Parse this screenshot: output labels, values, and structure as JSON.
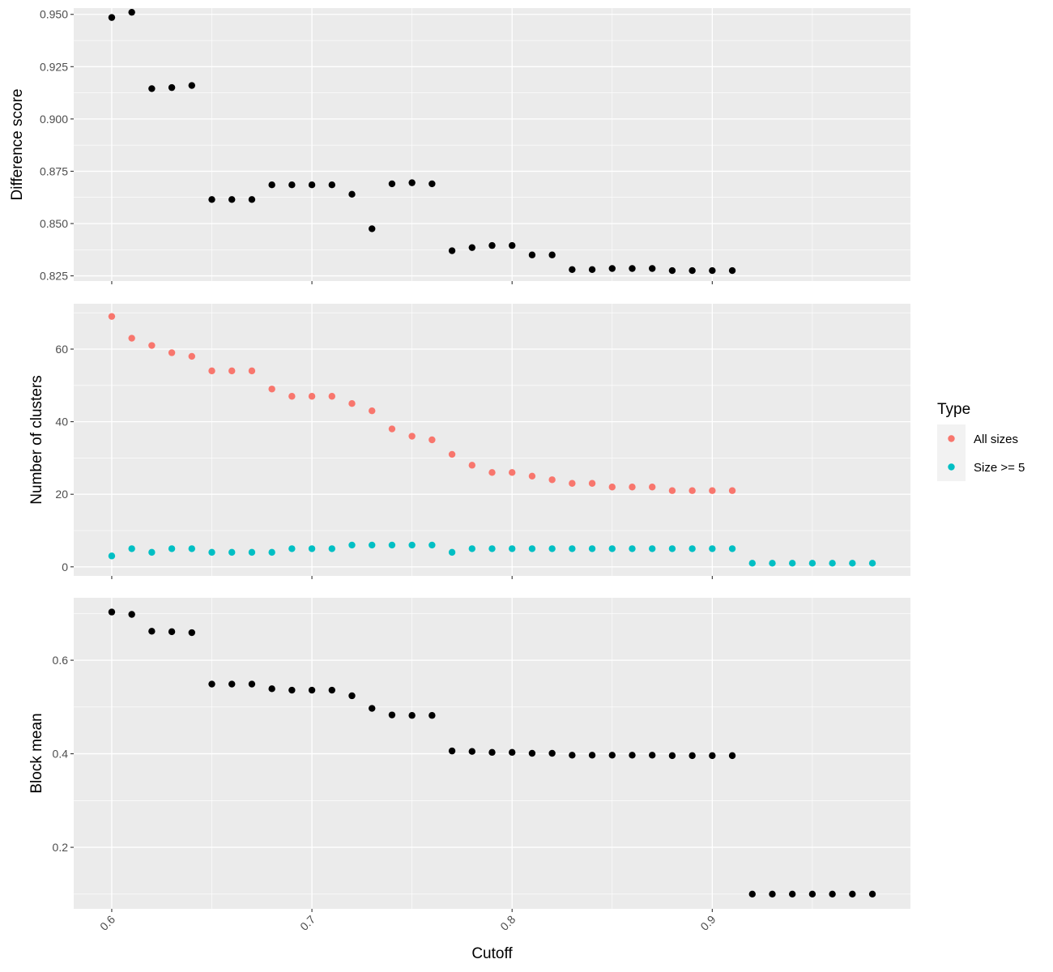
{
  "chart_data": [
    {
      "type": "scatter",
      "ylabel": "Difference score",
      "ylim": [
        0.8225,
        0.953
      ],
      "yticks": [
        0.825,
        0.85,
        0.875,
        0.9,
        0.925,
        0.95
      ],
      "ytick_labels": [
        "0.825",
        "0.850",
        "0.875",
        "0.900",
        "0.925",
        "0.950"
      ],
      "grid": true,
      "series": [
        {
          "color": "#000000",
          "x": [
            0.6,
            0.61,
            0.62,
            0.63,
            0.64,
            0.65,
            0.66,
            0.67,
            0.68,
            0.69,
            0.7,
            0.71,
            0.72,
            0.73,
            0.74,
            0.75,
            0.76,
            0.77,
            0.78,
            0.79,
            0.8,
            0.81,
            0.82,
            0.83,
            0.84,
            0.85,
            0.86,
            0.87,
            0.88,
            0.89,
            0.9,
            0.91
          ],
          "y": [
            0.9485,
            0.951,
            0.9145,
            0.915,
            0.916,
            0.8615,
            0.8615,
            0.8615,
            0.8685,
            0.8685,
            0.8685,
            0.8685,
            0.864,
            0.8475,
            0.869,
            0.8695,
            0.869,
            0.837,
            0.8385,
            0.8395,
            0.8395,
            0.835,
            0.835,
            0.828,
            0.828,
            0.8285,
            0.8285,
            0.8285,
            0.8275,
            0.8275,
            0.8275,
            0.8275
          ]
        }
      ]
    },
    {
      "type": "scatter",
      "ylabel": "Number of clusters",
      "ylim": [
        -2.5,
        72.5
      ],
      "yticks": [
        0,
        20,
        40,
        60
      ],
      "ytick_labels": [
        "0",
        "20",
        "40",
        "60"
      ],
      "grid": true,
      "legend": {
        "title": "Type",
        "position": "right"
      },
      "series": [
        {
          "name": "All sizes",
          "color": "#F8766D",
          "x": [
            0.6,
            0.61,
            0.62,
            0.63,
            0.64,
            0.65,
            0.66,
            0.67,
            0.68,
            0.69,
            0.7,
            0.71,
            0.72,
            0.73,
            0.74,
            0.75,
            0.76,
            0.77,
            0.78,
            0.79,
            0.8,
            0.81,
            0.82,
            0.83,
            0.84,
            0.85,
            0.86,
            0.87,
            0.88,
            0.89,
            0.9,
            0.91
          ],
          "y": [
            69,
            63,
            61,
            59,
            58,
            54,
            54,
            54,
            49,
            47,
            47,
            47,
            45,
            43,
            38,
            36,
            35,
            31,
            28,
            26,
            26,
            25,
            24,
            23,
            23,
            22,
            22,
            22,
            21,
            21,
            21,
            21
          ]
        },
        {
          "name": "Size >= 5",
          "color": "#00BFC4",
          "x": [
            0.6,
            0.61,
            0.62,
            0.63,
            0.64,
            0.65,
            0.66,
            0.67,
            0.68,
            0.69,
            0.7,
            0.71,
            0.72,
            0.73,
            0.74,
            0.75,
            0.76,
            0.77,
            0.78,
            0.79,
            0.8,
            0.81,
            0.82,
            0.83,
            0.84,
            0.85,
            0.86,
            0.87,
            0.88,
            0.89,
            0.9,
            0.91,
            0.92,
            0.93,
            0.94,
            0.95,
            0.96,
            0.97,
            0.98
          ],
          "y": [
            3,
            5,
            4,
            5,
            5,
            4,
            4,
            4,
            4,
            5,
            5,
            5,
            6,
            6,
            6,
            6,
            6,
            4,
            5,
            5,
            5,
            5,
            5,
            5,
            5,
            5,
            5,
            5,
            5,
            5,
            5,
            5,
            1,
            1,
            1,
            1,
            1,
            1,
            1
          ]
        }
      ]
    },
    {
      "type": "scatter",
      "ylabel": "Block mean",
      "ylim": [
        0.0685,
        0.7335
      ],
      "yticks": [
        0.2,
        0.4,
        0.6
      ],
      "ytick_labels": [
        "0.2",
        "0.4",
        "0.6"
      ],
      "grid": true,
      "xlabel": "Cutoff",
      "xlim": [
        0.581,
        0.999
      ],
      "xticks": [
        0.6,
        0.7,
        0.8,
        0.9
      ],
      "xtick_labels": [
        "0.6",
        "0.7",
        "0.8",
        "0.9"
      ],
      "series": [
        {
          "color": "#000000",
          "x": [
            0.6,
            0.61,
            0.62,
            0.63,
            0.64,
            0.65,
            0.66,
            0.67,
            0.68,
            0.69,
            0.7,
            0.71,
            0.72,
            0.73,
            0.74,
            0.75,
            0.76,
            0.77,
            0.78,
            0.79,
            0.8,
            0.81,
            0.82,
            0.83,
            0.84,
            0.85,
            0.86,
            0.87,
            0.88,
            0.89,
            0.9,
            0.91,
            0.92,
            0.93,
            0.94,
            0.95,
            0.96,
            0.97,
            0.98
          ],
          "y": [
            0.703,
            0.698,
            0.662,
            0.661,
            0.659,
            0.549,
            0.549,
            0.549,
            0.539,
            0.536,
            0.536,
            0.536,
            0.524,
            0.497,
            0.483,
            0.482,
            0.482,
            0.406,
            0.405,
            0.403,
            0.403,
            0.401,
            0.401,
            0.397,
            0.397,
            0.397,
            0.397,
            0.397,
            0.396,
            0.396,
            0.396,
            0.396,
            0.1,
            0.1,
            0.1,
            0.1,
            0.1,
            0.1,
            0.1
          ]
        }
      ]
    }
  ]
}
